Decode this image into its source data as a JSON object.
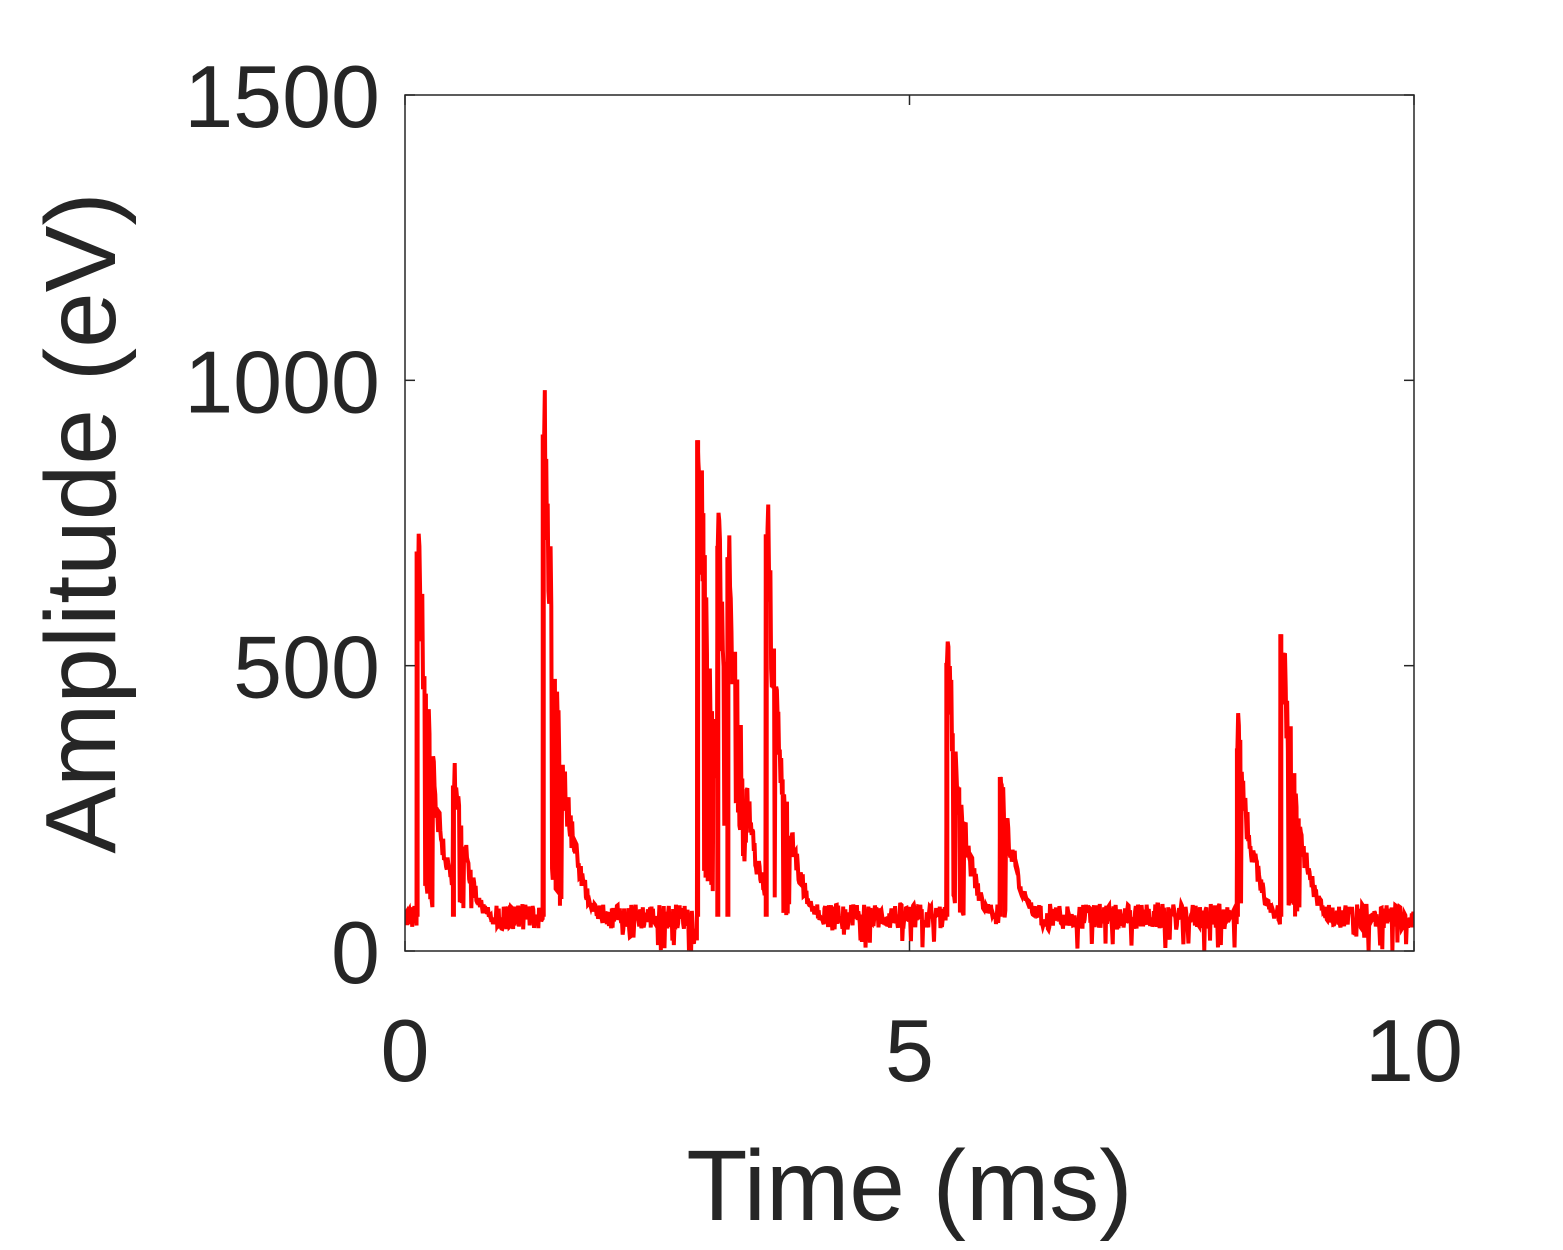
{
  "chart_data": {
    "type": "line",
    "title": "",
    "xlabel": "Time (ms)",
    "ylabel": "Amplitude (eV)",
    "xlim": [
      0,
      10
    ],
    "ylim": [
      0,
      1500
    ],
    "xticks": [
      0,
      5,
      10
    ],
    "yticks": [
      0,
      500,
      1000,
      1500
    ],
    "xtick_labels": [
      "0",
      "5",
      "10"
    ],
    "ytick_labels": [
      "0",
      "500",
      "1000",
      "1500"
    ],
    "grid": false,
    "legend": "none",
    "series": [
      {
        "color": "#ff0000",
        "baseline": 60,
        "peaks": [
          {
            "t": 0.12,
            "amp": 700,
            "drop": 0.2
          },
          {
            "t": 0.48,
            "amp": 290,
            "drop": 0.2
          },
          {
            "t": 1.37,
            "amp": 905,
            "drop": 0.22
          },
          {
            "t": 2.9,
            "amp": 895,
            "drop": 0.15
          },
          {
            "t": 3.1,
            "amp": 710,
            "drop": 0.15
          },
          {
            "t": 3.2,
            "amp": 690,
            "drop": 0.2
          },
          {
            "t": 3.58,
            "amp": 730,
            "drop": 0.23
          },
          {
            "t": 5.37,
            "amp": 505,
            "drop": 0.2
          },
          {
            "t": 5.9,
            "amp": 305,
            "drop": 0.12
          },
          {
            "t": 8.25,
            "amp": 355,
            "drop": 0.05
          },
          {
            "t": 8.68,
            "amp": 555,
            "drop": 0.2
          }
        ]
      }
    ]
  }
}
